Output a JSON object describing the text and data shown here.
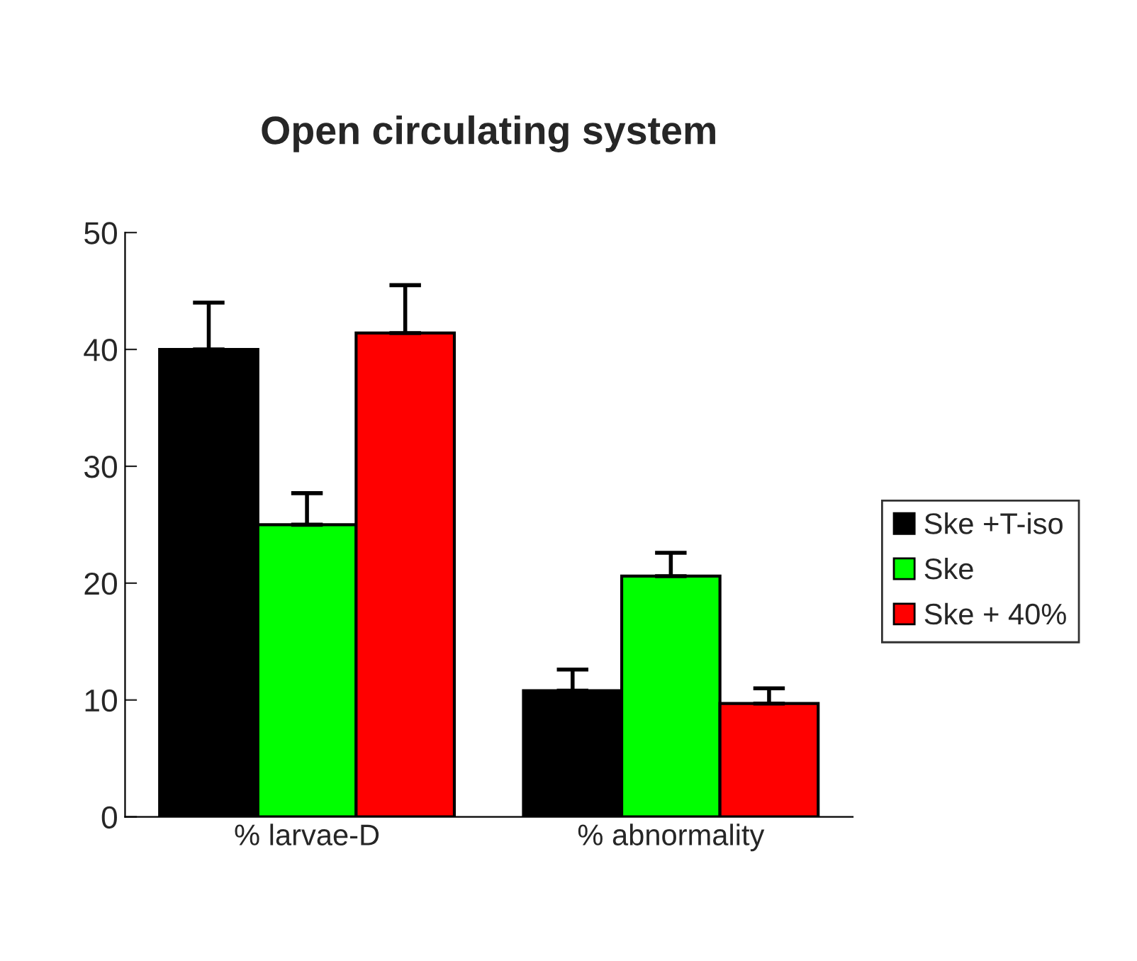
{
  "chart_data": {
    "type": "bar",
    "title": "Open circulating system",
    "categories": [
      "% larvae-D",
      "% abnormality"
    ],
    "series": [
      {
        "name": "Ske +T-iso",
        "color": "#000000",
        "values": [
          40,
          10.8
        ],
        "errors": [
          [
            40,
            44
          ],
          [
            10.8,
            12.6
          ]
        ]
      },
      {
        "name": "Ske",
        "color": "#00ff00",
        "values": [
          25,
          20.6
        ],
        "errors": [
          [
            25,
            27.7
          ],
          [
            20.6,
            22.6
          ]
        ]
      },
      {
        "name": "Ske + 40%",
        "color": "#ff0000",
        "values": [
          41.4,
          9.7
        ],
        "errors": [
          [
            41.4,
            45.5
          ],
          [
            9.7,
            11
          ]
        ]
      }
    ],
    "ylim": [
      0,
      50
    ],
    "yticks": [
      0,
      10,
      20,
      30,
      40,
      50
    ],
    "grid": false,
    "legend": "right"
  }
}
